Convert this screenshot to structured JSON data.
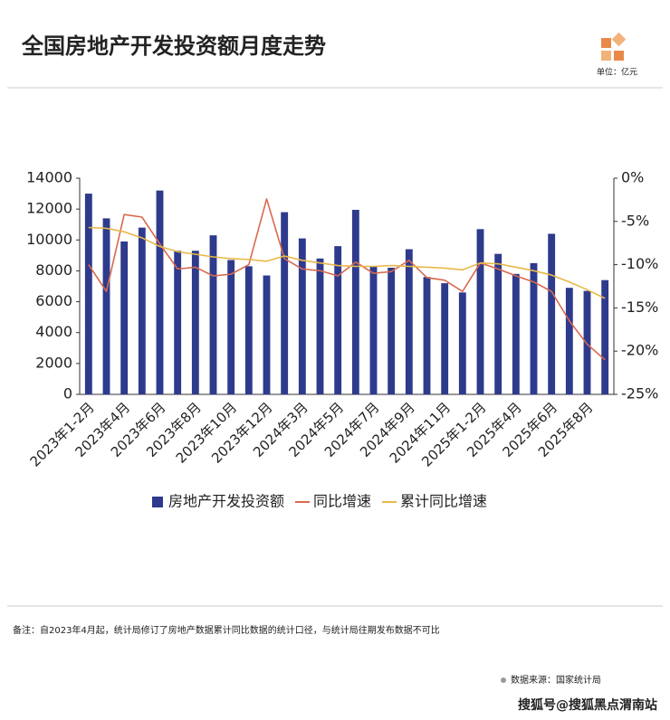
{
  "chart_data": {
    "type": "bar-line",
    "title": "全国房地产开发投资额月度走势",
    "unit": "单位：亿元",
    "note": "备注：自2023年4月起，统计局修订了房地产数据累计同比数据的统计口径，与统计局往期发布数据不可比",
    "source": "数据来源：国家统计局",
    "watermark": "搜狐号@搜狐黑点渭南站",
    "categories": [
      "2023年1-2月",
      null,
      "2023年4月",
      null,
      "2023年6月",
      null,
      "2023年8月",
      null,
      "2023年10月",
      null,
      "2023年12月",
      null,
      "2024年3月",
      null,
      "2024年5月",
      null,
      "2024年7月",
      null,
      "2024年9月",
      null,
      "2024年11月",
      null,
      "2025年1-2月",
      null,
      "2025年4月",
      null,
      "2025年6月",
      null,
      "2025年8月",
      null
    ],
    "ylim": [
      0,
      14000
    ],
    "yticks": [
      0,
      2000,
      4000,
      6000,
      8000,
      10000,
      12000,
      14000
    ],
    "y2lim": [
      -25,
      0
    ],
    "y2ticks": [
      {
        "value": -25,
        "label": "-25%"
      },
      {
        "value": -20,
        "label": "-20%"
      },
      {
        "value": -15,
        "label": "-15%"
      },
      {
        "value": -10,
        "label": "-10%"
      },
      {
        "value": -5,
        "label": "-5%"
      },
      {
        "value": 0,
        "label": "0%"
      }
    ],
    "series": [
      {
        "name": "房地产开发投资额",
        "type": "bar",
        "color": "#2e3a8c",
        "values": [
          13000,
          11400,
          9900,
          10800,
          13200,
          9300,
          9300,
          10300,
          8700,
          8300,
          7700,
          11800,
          10100,
          8800,
          9600,
          11950,
          8300,
          8200,
          9400,
          7600,
          7200,
          6600,
          10700,
          9100,
          7800,
          8500,
          10400,
          6900,
          6700,
          7400
        ]
      },
      {
        "name": "同比增速",
        "type": "line",
        "axis": "y2",
        "color": "#d9694f",
        "values": [
          -10.0,
          -13.1,
          -4.2,
          -4.5,
          -7.6,
          -10.5,
          -10.3,
          -11.3,
          -11.1,
          -10.0,
          -2.4,
          -9.3,
          -10.5,
          -10.7,
          -11.3,
          -9.7,
          -11.0,
          -10.8,
          -9.5,
          -11.5,
          -11.8,
          -13.1,
          -9.8,
          -10.5,
          -11.3,
          -12.0,
          -13.1,
          -16.5,
          -19.2,
          -21.0
        ]
      },
      {
        "name": "累计同比增速",
        "type": "line",
        "axis": "y2",
        "color": "#e8b84a",
        "values": [
          -5.7,
          -5.8,
          -6.2,
          -6.9,
          -7.9,
          -8.5,
          -8.8,
          -9.1,
          -9.3,
          -9.4,
          -9.6,
          -9.0,
          -9.5,
          -9.8,
          -10.1,
          -10.2,
          -10.2,
          -10.1,
          -10.2,
          -10.3,
          -10.4,
          -10.6,
          -9.8,
          -9.9,
          -10.3,
          -10.7,
          -11.2,
          -12.0,
          -12.9,
          -13.9
        ]
      }
    ]
  }
}
